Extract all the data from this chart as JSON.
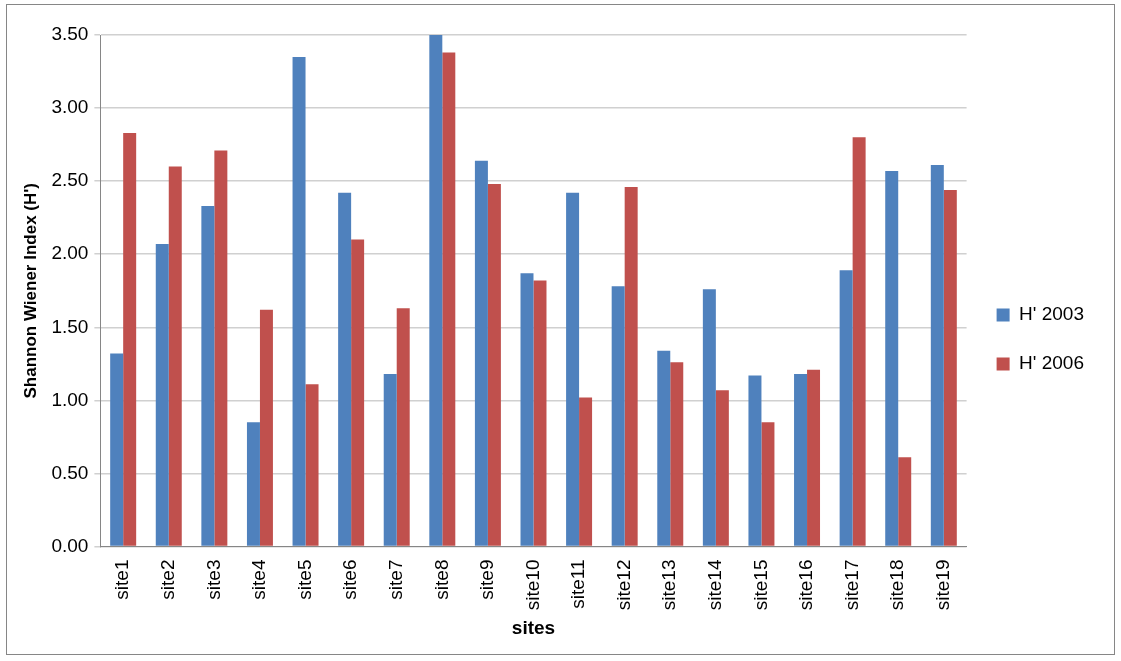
{
  "chart_data": {
    "type": "bar",
    "xlabel": "sites",
    "ylabel": "Shannon Wiener Index (H')",
    "categories": [
      "site1",
      "site2",
      "site3",
      "site4",
      "site5",
      "site6",
      "site7",
      "site8",
      "site9",
      "site10",
      "site11",
      "site12",
      "site13",
      "site14",
      "site15",
      "site16",
      "site17",
      "site18",
      "site19"
    ],
    "series": [
      {
        "name": "H' 2003",
        "color": "#4f81bd",
        "values": [
          1.32,
          2.07,
          2.33,
          0.85,
          3.35,
          2.42,
          1.18,
          3.5,
          2.64,
          1.87,
          2.42,
          1.78,
          1.34,
          1.76,
          1.17,
          1.18,
          1.89,
          2.57,
          2.61
        ]
      },
      {
        "name": "H' 2006",
        "color": "#c0504d",
        "values": [
          2.83,
          2.6,
          2.71,
          1.62,
          1.11,
          2.1,
          1.63,
          3.38,
          2.48,
          1.82,
          1.02,
          2.46,
          1.26,
          1.07,
          0.85,
          1.21,
          2.8,
          0.61,
          2.44
        ]
      }
    ],
    "ylim": [
      0,
      3.5
    ],
    "yticks": [
      {
        "value": 0,
        "label": "0.00"
      },
      {
        "value": 0.5,
        "label": "0.50"
      },
      {
        "value": 1,
        "label": "1.00"
      },
      {
        "value": 1.5,
        "label": "1.50"
      },
      {
        "value": 2,
        "label": "2.00"
      },
      {
        "value": 2.5,
        "label": "2.50"
      },
      {
        "value": 3,
        "label": "3.00"
      },
      {
        "value": 3.5,
        "label": "3.50"
      }
    ],
    "grid": "y",
    "legend": "right"
  }
}
